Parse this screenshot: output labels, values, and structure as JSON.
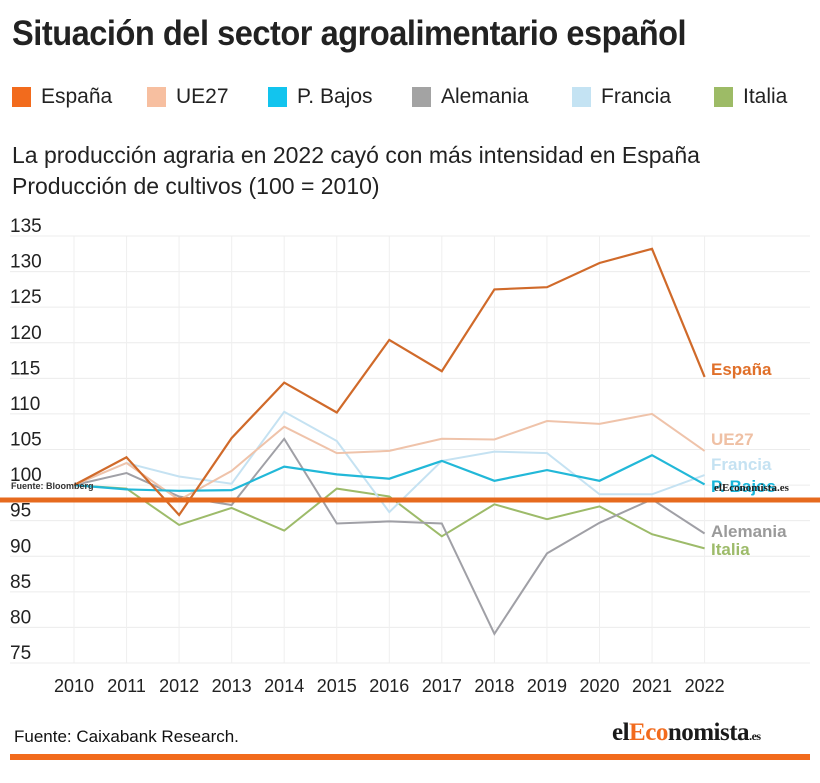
{
  "title": "Situación del sector agroalimentario español",
  "legend": [
    {
      "label": "España",
      "color": "#F26B1D"
    },
    {
      "label": "UE27",
      "color": "#F7BFA0"
    },
    {
      "label": "P. Bajos",
      "color": "#12C4EE"
    },
    {
      "label": "Alemania",
      "color": "#A3A3A3"
    },
    {
      "label": "Francia",
      "color": "#C4E3F3"
    },
    {
      "label": "Italia",
      "color": "#9DBB66"
    }
  ],
  "subtitle_line1": "La producción agraria en 2022 cayó con más intensidad en España",
  "subtitle_line2": "Producción de cultivos (100 = 2010)",
  "overlay_source": "Fuente: Bloomberg",
  "watermark_small": "elEconomista.es",
  "footer": {
    "source": "Fuente:  Caixabank Research.",
    "logo_el": "el",
    "logo_eco": "Eco",
    "logo_nomista": "nomista",
    "logo_tld": ".es"
  },
  "chart_data": {
    "type": "line",
    "title": "La producción agraria en 2022 cayó con más intensidad en España",
    "subtitle": "Producción de cultivos (100 = 2010)",
    "xlabel": "",
    "ylabel": "",
    "x": [
      "2010",
      "2011",
      "2012",
      "2013",
      "2014",
      "2015",
      "2016",
      "2017",
      "2018",
      "2019",
      "2020",
      "2021",
      "2022"
    ],
    "ylim": [
      75,
      135
    ],
    "yticks": [
      135,
      130,
      125,
      120,
      115,
      110,
      105,
      100,
      95,
      90,
      85,
      80,
      75
    ],
    "grid": true,
    "legend_position": "top",
    "series": [
      {
        "name": "Italia",
        "line_color": "#9DBB6A",
        "label_color": "#9DBB6A",
        "values": [
          100,
          99.5,
          94.4,
          96.8,
          93.6,
          99.5,
          98.4,
          92.8,
          97.3,
          95.2,
          97.0,
          93.1,
          91.1
        ]
      },
      {
        "name": "Alemania",
        "line_color": "#A0A0A6",
        "label_color": "#9A9A9A",
        "values": [
          100,
          101.7,
          98.4,
          97.2,
          106.5,
          94.6,
          94.9,
          94.6,
          79.1,
          90.4,
          94.7,
          98.0,
          93.2
        ]
      },
      {
        "name": "Francia",
        "line_color": "#C5E2F2",
        "label_color": "#C5E2F2",
        "values": [
          100,
          103.1,
          101.2,
          100.2,
          110.3,
          106.2,
          96.2,
          103.4,
          104.7,
          104.5,
          98.7,
          98.7,
          101.4
        ]
      },
      {
        "name": "UE27",
        "line_color": "#EFC3AA",
        "label_color": "#EFC0A4",
        "values": [
          100,
          103.1,
          97.9,
          102.0,
          108.2,
          104.5,
          104.8,
          106.5,
          106.4,
          109.0,
          108.6,
          110.0,
          104.8
        ]
      },
      {
        "name": "P. Bajos",
        "line_color": "#22B8D8",
        "label_color": "#17B5DA",
        "values": [
          100,
          99.4,
          99.2,
          99.3,
          102.6,
          101.5,
          100.9,
          103.4,
          100.6,
          102.1,
          100.6,
          104.2,
          100.1
        ]
      },
      {
        "name": "España",
        "line_color": "#D06A2A",
        "label_color": "#E0702A",
        "values": [
          100,
          103.9,
          95.8,
          106.6,
          114.4,
          110.2,
          120.4,
          116.0,
          127.5,
          127.8,
          131.2,
          133.2,
          115.2
        ]
      }
    ],
    "end_labels": [
      "España",
      "UE27",
      "Francia",
      "P. Bajos",
      "Alemania",
      "Italia"
    ],
    "reference_line": {
      "value": 97.9,
      "color": "#E66A1E"
    }
  }
}
